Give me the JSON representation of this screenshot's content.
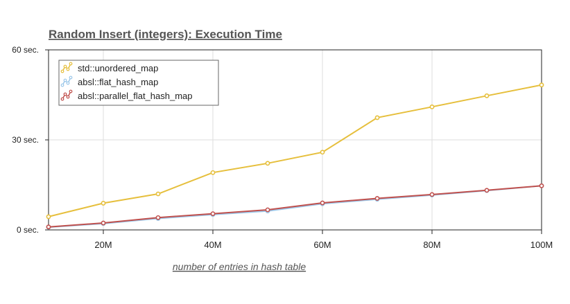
{
  "chart_data": {
    "type": "line",
    "title": "Random Insert (integers): Execution Time",
    "xlabel": "number of entries in hash table",
    "ylabel": "",
    "xlim": [
      10000000,
      100000000
    ],
    "ylim": [
      0,
      60
    ],
    "x_ticks": [
      {
        "value": 20000000,
        "label": "20M"
      },
      {
        "value": 40000000,
        "label": "40M"
      },
      {
        "value": 60000000,
        "label": "60M"
      },
      {
        "value": 80000000,
        "label": "80M"
      },
      {
        "value": 100000000,
        "label": "100M"
      }
    ],
    "y_ticks": [
      {
        "value": 0,
        "label": "0 sec."
      },
      {
        "value": 30,
        "label": "30 sec."
      },
      {
        "value": 60,
        "label": "60 sec."
      }
    ],
    "grid": true,
    "legend": "top-left",
    "x": [
      10000000,
      20000000,
      30000000,
      40000000,
      50000000,
      60000000,
      70000000,
      80000000,
      90000000,
      100000000
    ],
    "series": [
      {
        "name": "std::unordered_map",
        "color": "#e6bf3c",
        "values": [
          4.4,
          8.9,
          12.0,
          19.1,
          22.2,
          25.9,
          37.4,
          41.0,
          44.7,
          48.3
        ]
      },
      {
        "name": "absl::flat_hash_map",
        "color": "#9cc8ea",
        "values": [
          0.9,
          2.1,
          3.8,
          5.1,
          6.3,
          8.7,
          10.2,
          11.6,
          13.1,
          14.7
        ]
      },
      {
        "name": "absl::parallel_flat_hash_map",
        "color": "#c0504d",
        "values": [
          1.0,
          2.3,
          4.1,
          5.4,
          6.7,
          9.0,
          10.5,
          11.8,
          13.2,
          14.7
        ]
      }
    ]
  }
}
